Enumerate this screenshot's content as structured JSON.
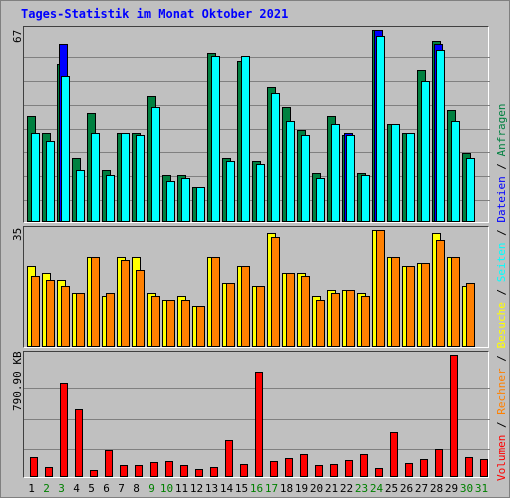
{
  "title": "Tages-Statistik im Monat Oktober 2021",
  "colors": {
    "anfragen": "#008040",
    "dateien": "#0000ff",
    "seiten": "#00ffff",
    "besuche": "#ffff00",
    "rechner": "#ff8000",
    "volumen": "#ff0000",
    "weekday_label": "#000000",
    "weekend_label": "#008000",
    "bg": "#c0c0c0"
  },
  "side_legend": {
    "volumen": "Volumen",
    "rechner": "Rechner",
    "besuche": "Besuche",
    "seiten": "Seiten",
    "dateien": "Dateien",
    "anfragen": "Anfragen",
    "sep": " / "
  },
  "chart_data": [
    {
      "type": "bar",
      "ylabel": "67",
      "ylim": [
        0,
        67
      ],
      "categories": [
        "1",
        "2",
        "3",
        "4",
        "5",
        "6",
        "7",
        "8",
        "9",
        "10",
        "11",
        "12",
        "13",
        "14",
        "15",
        "16",
        "17",
        "18",
        "19",
        "20",
        "21",
        "22",
        "23",
        "24",
        "25",
        "26",
        "27",
        "28",
        "29",
        "30",
        "31"
      ],
      "series": [
        {
          "name": "Anfragen",
          "values": [
            37,
            31,
            55,
            22,
            38,
            18,
            31,
            31,
            44,
            16,
            16,
            12,
            59,
            22,
            56,
            21,
            47,
            40,
            32,
            17,
            37,
            30,
            17,
            67,
            34,
            31,
            53,
            63,
            39,
            24,
            0
          ]
        },
        {
          "name": "Dateien",
          "values": [
            0,
            0,
            62,
            0,
            0,
            0,
            0,
            0,
            0,
            0,
            0,
            0,
            0,
            0,
            0,
            0,
            0,
            0,
            0,
            0,
            0,
            31,
            0,
            67,
            0,
            0,
            0,
            62,
            0,
            0,
            0
          ]
        },
        {
          "name": "Seiten",
          "values": [
            31,
            28,
            51,
            18,
            31,
            16,
            31,
            30,
            40,
            14,
            15,
            12,
            58,
            21,
            58,
            20,
            45,
            35,
            30,
            15,
            34,
            30,
            16,
            65,
            34,
            31,
            49,
            60,
            35,
            22,
            0
          ]
        }
      ]
    },
    {
      "type": "bar",
      "ylabel": "35",
      "ylim": [
        0,
        35
      ],
      "categories": [
        "1",
        "2",
        "3",
        "4",
        "5",
        "6",
        "7",
        "8",
        "9",
        "10",
        "11",
        "12",
        "13",
        "14",
        "15",
        "16",
        "17",
        "18",
        "19",
        "20",
        "21",
        "22",
        "23",
        "24",
        "25",
        "26",
        "27",
        "28",
        "29",
        "30",
        "31"
      ],
      "series": [
        {
          "name": "Besuche",
          "values": [
            24,
            22,
            20,
            16,
            27,
            15,
            27,
            27,
            16,
            14,
            15,
            12,
            27,
            19,
            24,
            18,
            34,
            22,
            22,
            15,
            17,
            17,
            16,
            35,
            27,
            24,
            25,
            34,
            27,
            18,
            0
          ]
        },
        {
          "name": "Rechner",
          "values": [
            21,
            20,
            18,
            16,
            27,
            16,
            26,
            23,
            15,
            14,
            14,
            12,
            27,
            19,
            24,
            18,
            33,
            22,
            21,
            14,
            16,
            17,
            15,
            35,
            27,
            24,
            25,
            32,
            27,
            19,
            0
          ]
        }
      ]
    },
    {
      "type": "bar",
      "ylabel": "790.90 KB",
      "ylim": [
        0,
        790.9
      ],
      "categories": [
        "1",
        "2",
        "3",
        "4",
        "5",
        "6",
        "7",
        "8",
        "9",
        "10",
        "11",
        "12",
        "13",
        "14",
        "15",
        "16",
        "17",
        "18",
        "19",
        "20",
        "21",
        "22",
        "23",
        "24",
        "25",
        "26",
        "27",
        "28",
        "29",
        "30",
        "31"
      ],
      "series": [
        {
          "name": "Volumen",
          "values": [
            123,
            59,
            611,
            440,
            41,
            169,
            73,
            70,
            93,
            100,
            70,
            45,
            57,
            235,
            76,
            683,
            100,
            120,
            146,
            73,
            80,
            104,
            141,
            53,
            290,
            86,
            112,
            176,
            790,
            123,
            113
          ]
        }
      ]
    }
  ],
  "x_labels": [
    {
      "text": "1",
      "weekend": false
    },
    {
      "text": "2",
      "weekend": true
    },
    {
      "text": "3",
      "weekend": true
    },
    {
      "text": "4",
      "weekend": false
    },
    {
      "text": "5",
      "weekend": false
    },
    {
      "text": "6",
      "weekend": false
    },
    {
      "text": "7",
      "weekend": false
    },
    {
      "text": "8",
      "weekend": false
    },
    {
      "text": "9",
      "weekend": true
    },
    {
      "text": "10",
      "weekend": true
    },
    {
      "text": "11",
      "weekend": false
    },
    {
      "text": "12",
      "weekend": false
    },
    {
      "text": "13",
      "weekend": false
    },
    {
      "text": "14",
      "weekend": false
    },
    {
      "text": "15",
      "weekend": false
    },
    {
      "text": "16",
      "weekend": true
    },
    {
      "text": "17",
      "weekend": true
    },
    {
      "text": "18",
      "weekend": false
    },
    {
      "text": "19",
      "weekend": false
    },
    {
      "text": "20",
      "weekend": false
    },
    {
      "text": "21",
      "weekend": false
    },
    {
      "text": "22",
      "weekend": false
    },
    {
      "text": "23",
      "weekend": true
    },
    {
      "text": "24",
      "weekend": true
    },
    {
      "text": "25",
      "weekend": false
    },
    {
      "text": "26",
      "weekend": false
    },
    {
      "text": "27",
      "weekend": false
    },
    {
      "text": "28",
      "weekend": false
    },
    {
      "text": "29",
      "weekend": false
    },
    {
      "text": "30",
      "weekend": true
    },
    {
      "text": "31",
      "weekend": true
    }
  ]
}
